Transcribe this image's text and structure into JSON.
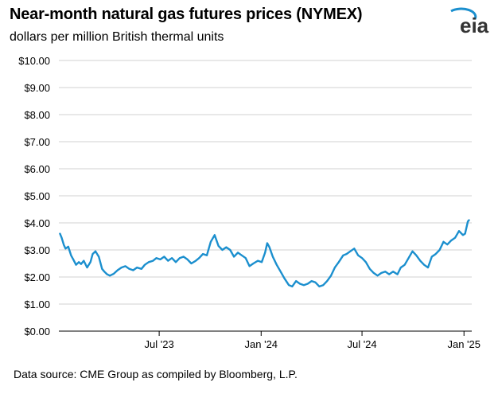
{
  "header": {
    "title": "Near-month natural gas futures prices (NYMEX)",
    "subtitle": "dollars per million British thermal units"
  },
  "logo": {
    "text": "eia",
    "icon": "eia-logo-icon"
  },
  "footer": {
    "source": "Data source: CME Group as compiled by Bloomberg, L.P."
  },
  "colors": {
    "line": "#1b8fce",
    "grid": "#d0d0d0",
    "axis": "#000000",
    "logo_arc": "#1b8fce",
    "logo_text": "#333333"
  },
  "chart_data": {
    "type": "line",
    "title": "Near-month natural gas futures prices (NYMEX)",
    "ylabel": "dollars per million British thermal units",
    "ylim": [
      0,
      10
    ],
    "yticks": [
      0,
      1,
      2,
      3,
      4,
      5,
      6,
      7,
      8,
      9,
      10
    ],
    "ytick_labels": [
      "$0.00",
      "$1.00",
      "$2.00",
      "$3.00",
      "$4.00",
      "$5.00",
      "$6.00",
      "$7.00",
      "$8.00",
      "$9.00",
      "$10.00"
    ],
    "xlim": [
      "2023-01-01",
      "2025-01-15"
    ],
    "xticks": [
      "2023-07-01",
      "2024-01-01",
      "2024-07-01",
      "2025-01-01"
    ],
    "xtick_labels": [
      "Jul '23",
      "Jan '24",
      "Jul '24",
      "Jan '25"
    ],
    "grid": true,
    "series": [
      {
        "x": [
          "2023-01-03",
          "2023-01-06",
          "2023-01-10",
          "2023-01-13",
          "2023-01-18",
          "2023-01-23",
          "2023-01-27",
          "2023-02-01",
          "2023-02-06",
          "2023-02-10",
          "2023-02-15",
          "2023-02-21",
          "2023-02-27",
          "2023-03-03",
          "2023-03-08",
          "2023-03-14",
          "2023-03-20",
          "2023-03-24",
          "2023-03-29",
          "2023-04-03",
          "2023-04-10",
          "2023-04-17",
          "2023-04-24",
          "2023-05-01",
          "2023-05-08",
          "2023-05-15",
          "2023-05-22",
          "2023-05-30",
          "2023-06-05",
          "2023-06-12",
          "2023-06-20",
          "2023-06-26",
          "2023-07-03",
          "2023-07-10",
          "2023-07-17",
          "2023-07-24",
          "2023-07-31",
          "2023-08-07",
          "2023-08-14",
          "2023-08-21",
          "2023-08-28",
          "2023-09-05",
          "2023-09-11",
          "2023-09-18",
          "2023-09-25",
          "2023-10-02",
          "2023-10-09",
          "2023-10-16",
          "2023-10-23",
          "2023-10-30",
          "2023-11-06",
          "2023-11-13",
          "2023-11-20",
          "2023-11-27",
          "2023-12-04",
          "2023-12-11",
          "2023-12-18",
          "2023-12-26",
          "2024-01-02",
          "2024-01-08",
          "2024-01-12",
          "2024-01-16",
          "2024-01-22",
          "2024-01-29",
          "2024-02-05",
          "2024-02-12",
          "2024-02-20",
          "2024-02-26",
          "2024-03-04",
          "2024-03-11",
          "2024-03-18",
          "2024-03-25",
          "2024-04-01",
          "2024-04-08",
          "2024-04-15",
          "2024-04-22",
          "2024-04-29",
          "2024-05-06",
          "2024-05-13",
          "2024-05-20",
          "2024-05-28",
          "2024-06-03",
          "2024-06-10",
          "2024-06-17",
          "2024-06-24",
          "2024-07-01",
          "2024-07-08",
          "2024-07-15",
          "2024-07-22",
          "2024-07-29",
          "2024-08-05",
          "2024-08-12",
          "2024-08-19",
          "2024-08-26",
          "2024-09-03",
          "2024-09-09",
          "2024-09-16",
          "2024-09-23",
          "2024-09-30",
          "2024-10-07",
          "2024-10-14",
          "2024-10-21",
          "2024-10-28",
          "2024-11-04",
          "2024-11-11",
          "2024-11-18",
          "2024-11-25",
          "2024-12-02",
          "2024-12-09",
          "2024-12-16",
          "2024-12-23",
          "2024-12-30",
          "2025-01-03",
          "2025-01-08",
          "2025-01-10"
        ],
        "values": [
          3.6,
          3.45,
          3.18,
          3.05,
          3.12,
          2.8,
          2.65,
          2.45,
          2.55,
          2.48,
          2.6,
          2.35,
          2.55,
          2.85,
          2.95,
          2.75,
          2.3,
          2.2,
          2.1,
          2.05,
          2.12,
          2.25,
          2.35,
          2.4,
          2.3,
          2.25,
          2.35,
          2.3,
          2.45,
          2.55,
          2.6,
          2.7,
          2.65,
          2.75,
          2.6,
          2.7,
          2.55,
          2.7,
          2.75,
          2.65,
          2.5,
          2.6,
          2.7,
          2.85,
          2.8,
          3.3,
          3.55,
          3.15,
          3.0,
          3.1,
          3.0,
          2.75,
          2.9,
          2.8,
          2.7,
          2.4,
          2.5,
          2.6,
          2.55,
          2.9,
          3.25,
          3.1,
          2.75,
          2.45,
          2.2,
          1.95,
          1.7,
          1.65,
          1.85,
          1.75,
          1.7,
          1.75,
          1.85,
          1.8,
          1.65,
          1.7,
          1.85,
          2.05,
          2.35,
          2.55,
          2.8,
          2.85,
          2.95,
          3.05,
          2.8,
          2.7,
          2.55,
          2.3,
          2.15,
          2.05,
          2.15,
          2.2,
          2.1,
          2.2,
          2.1,
          2.35,
          2.45,
          2.7,
          2.95,
          2.8,
          2.6,
          2.45,
          2.35,
          2.75,
          2.85,
          3.0,
          3.3,
          3.2,
          3.35,
          3.45,
          3.7,
          3.55,
          3.6,
          4.05,
          4.1
        ]
      }
    ]
  }
}
